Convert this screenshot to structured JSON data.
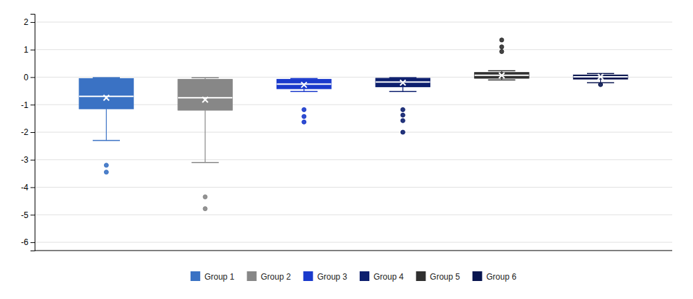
{
  "chart_data": {
    "type": "box",
    "categories": [
      "Group 1",
      "Group 2",
      "Group 3",
      "Group 4",
      "Group 5",
      "Group 6"
    ],
    "colors": [
      "#3a72c4",
      "#878787",
      "#1a3acc",
      "#0d1f6e",
      "#303030",
      "#091650"
    ],
    "boxes": [
      {
        "q1": -1.15,
        "median": -0.7,
        "q3": -0.05,
        "mean": -0.75,
        "whislo": -2.3,
        "whishi": -0.02,
        "fliers": [
          -3.2,
          -3.45
        ]
      },
      {
        "q1": -1.2,
        "median": -0.75,
        "q3": -0.08,
        "mean": -0.82,
        "whislo": -3.1,
        "whishi": -0.02,
        "fliers": [
          -4.35,
          -4.78
        ]
      },
      {
        "q1": -0.42,
        "median": -0.25,
        "q3": -0.08,
        "mean": -0.28,
        "whislo": -0.52,
        "whishi": -0.05,
        "fliers": [
          -1.18,
          -1.43,
          -1.63
        ]
      },
      {
        "q1": -0.35,
        "median": -0.18,
        "q3": -0.04,
        "mean": -0.2,
        "whislo": -0.52,
        "whishi": -0.02,
        "fliers": [
          -1.18,
          -1.38,
          -1.58,
          -2.0
        ]
      },
      {
        "q1": -0.04,
        "median": 0.07,
        "q3": 0.17,
        "mean": 0.06,
        "whislo": -0.1,
        "whishi": 0.23,
        "fliers": [
          1.35,
          1.1,
          0.93
        ]
      },
      {
        "q1": -0.07,
        "median": 0.01,
        "q3": 0.08,
        "mean": 0.01,
        "whislo": -0.2,
        "whishi": 0.13,
        "fliers": [
          -0.27
        ]
      }
    ],
    "ylim": [
      -6.3,
      2.3
    ],
    "yticks": [
      -6,
      -5,
      -4,
      -3,
      -2,
      -1,
      0,
      1,
      2
    ],
    "grid": true,
    "legend": "bottom",
    "tick_labels": "y"
  }
}
